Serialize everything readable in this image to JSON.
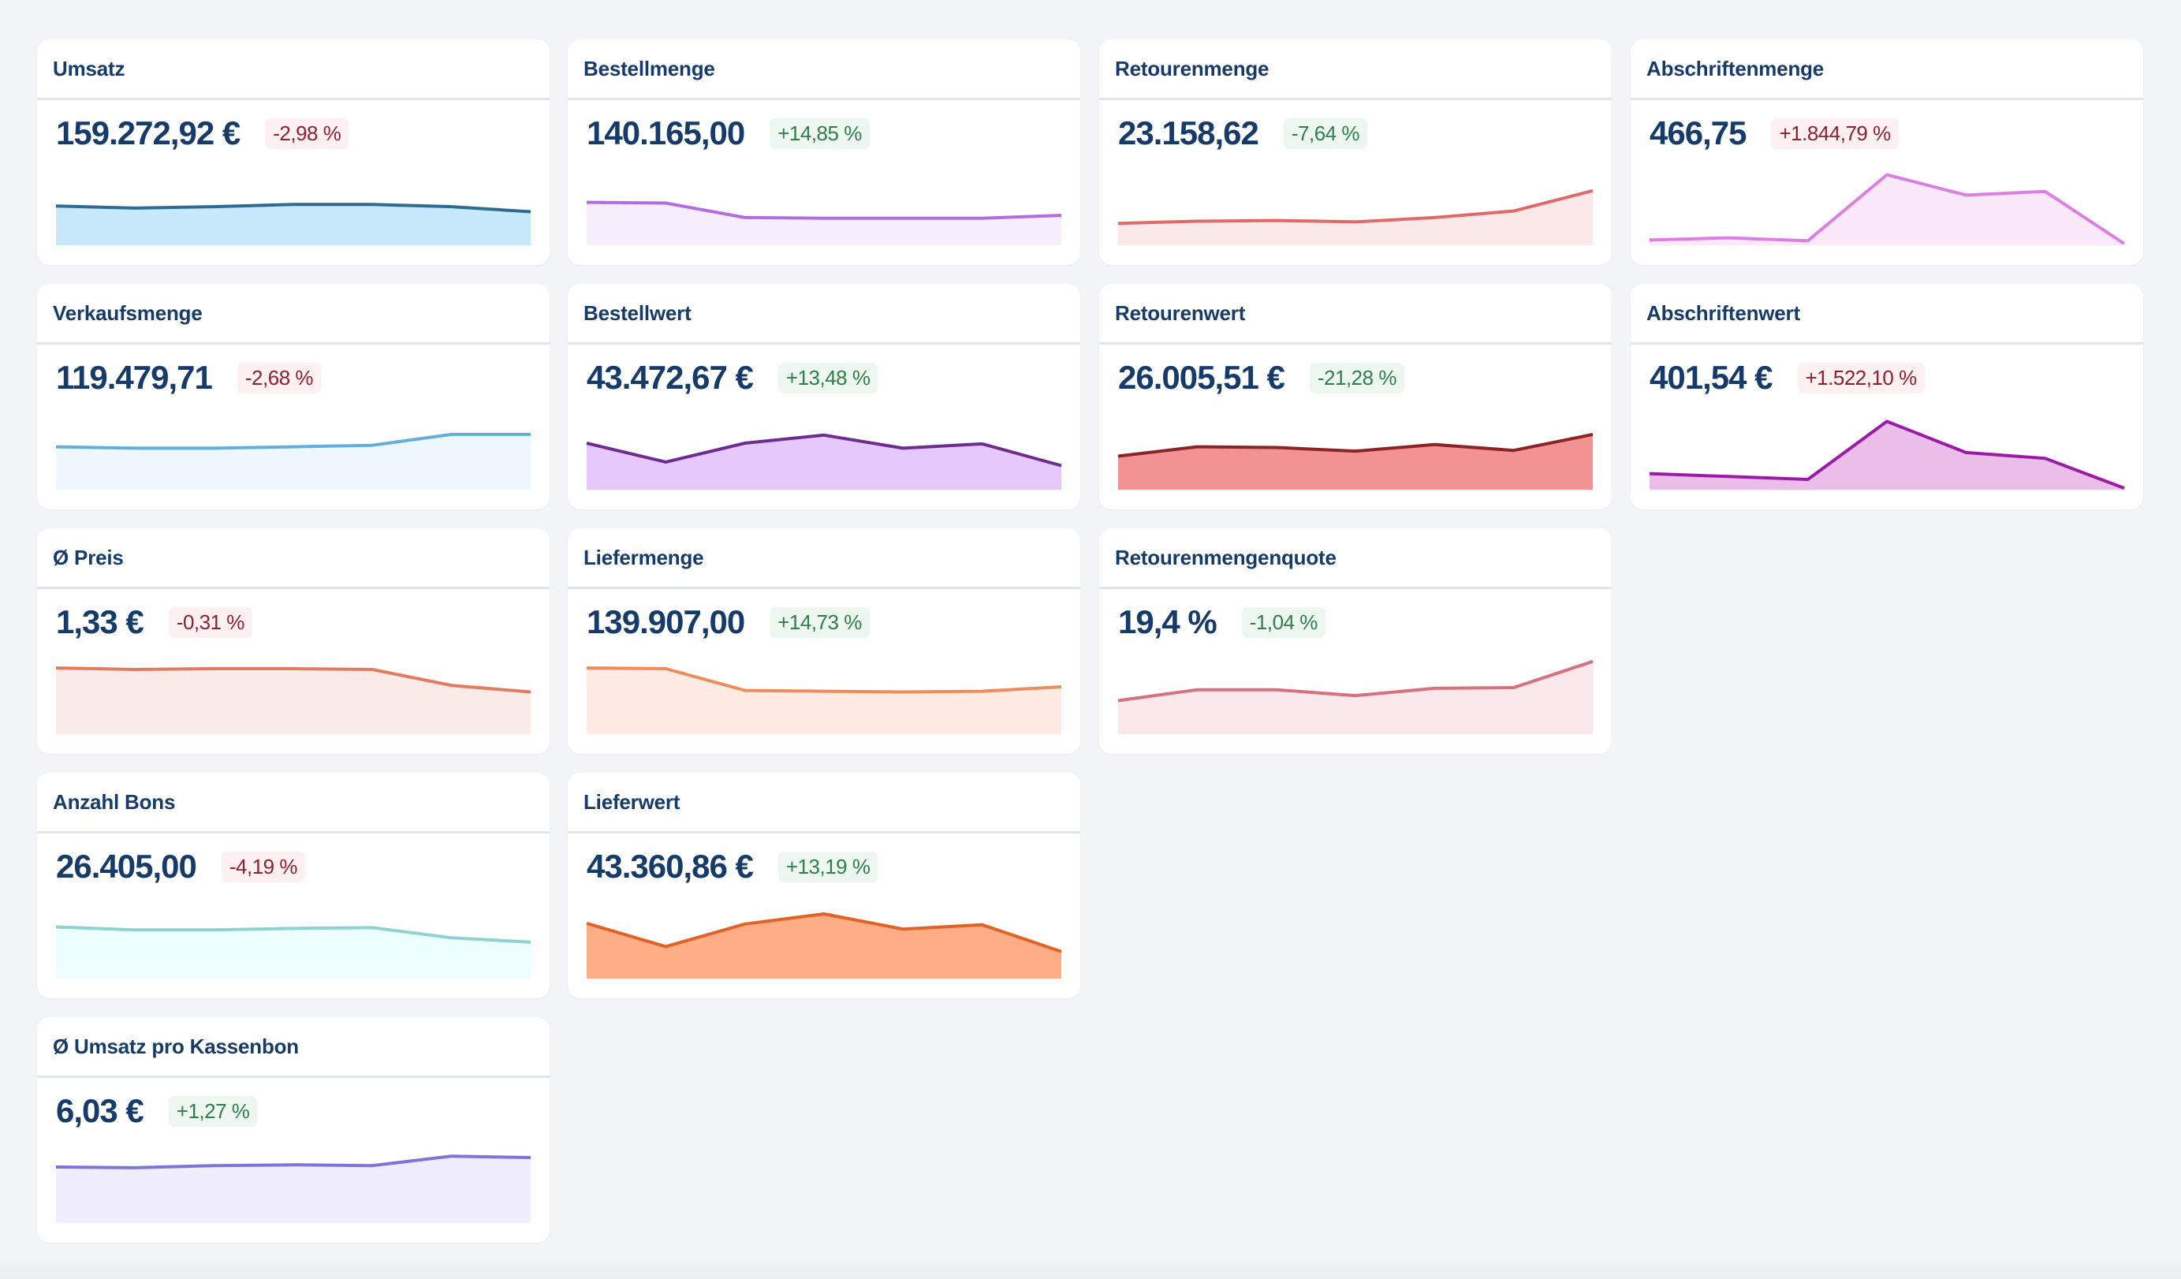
{
  "dashboard": {
    "cards": [
      {
        "id": "umsatz",
        "title": "Umsatz",
        "value": "159.272,92 €",
        "delta": "-2,98 %",
        "trend": "neg",
        "line_color": "#2f6a93",
        "fill_color": "#c8e8fb",
        "col": 0,
        "row": 0,
        "series": [
          0.52,
          0.49,
          0.51,
          0.54,
          0.54,
          0.51,
          0.44
        ]
      },
      {
        "id": "bestellmenge",
        "title": "Bestellmenge",
        "value": "140.165,00",
        "delta": "+14,85 %",
        "trend": "pos",
        "line_color": "#b26ee0",
        "fill_color": "#f6eefd",
        "col": 1,
        "row": 0,
        "series": [
          0.57,
          0.56,
          0.36,
          0.35,
          0.35,
          0.35,
          0.39
        ]
      },
      {
        "id": "retourenmenge",
        "title": "Retourenmenge",
        "value": "23.158,62",
        "delta": "-7,64 %",
        "trend": "pos",
        "line_color": "#e06a6a",
        "fill_color": "#fbe9e9",
        "col": 2,
        "row": 0,
        "series": [
          0.28,
          0.31,
          0.32,
          0.3,
          0.36,
          0.45,
          0.73
        ]
      },
      {
        "id": "abschriftenmenge",
        "title": "Abschriftenmenge",
        "value": "466,75",
        "delta": "+1.844,79 %",
        "trend": "neg",
        "line_color": "#dd7fe2",
        "fill_color": "#fbe9fb",
        "col": 3,
        "row": 0,
        "series": [
          0.05,
          0.08,
          0.04,
          0.95,
          0.67,
          0.72,
          0.0
        ]
      },
      {
        "id": "verkaufsmenge",
        "title": "Verkaufsmenge",
        "value": "119.479,71",
        "delta": "-2,68 %",
        "trend": "neg",
        "line_color": "#64aedc",
        "fill_color": "#eef7fe",
        "col": 0,
        "row": 1,
        "series": [
          0.57,
          0.55,
          0.55,
          0.57,
          0.59,
          0.74,
          0.74
        ]
      },
      {
        "id": "bestellwert",
        "title": "Bestellwert",
        "value": "43.472,67 €",
        "delta": "+13,48 %",
        "trend": "pos",
        "line_color": "#6b2e8f",
        "fill_color": "#e6c8fc",
        "col": 1,
        "row": 1,
        "series": [
          0.62,
          0.36,
          0.62,
          0.73,
          0.55,
          0.61,
          0.31
        ]
      },
      {
        "id": "retourenwert",
        "title": "Retourenwert",
        "value": "26.005,51 €",
        "delta": "-21,28 %",
        "trend": "pos",
        "line_color": "#8c2326",
        "fill_color": "#f39391",
        "col": 2,
        "row": 1,
        "series": [
          0.44,
          0.57,
          0.56,
          0.51,
          0.6,
          0.52,
          0.74
        ]
      },
      {
        "id": "abschriftenwert",
        "title": "Abschriftenwert",
        "value": "401,54 €",
        "delta": "+1.522,10 %",
        "trend": "neg",
        "line_color": "#9b1aa6",
        "fill_color": "#ebbde9",
        "col": 3,
        "row": 1,
        "series": [
          0.2,
          0.16,
          0.12,
          0.92,
          0.49,
          0.41,
          0.0
        ]
      },
      {
        "id": "preis",
        "title": "Ø Preis",
        "value": "1,33 €",
        "delta": "-0,31 %",
        "trend": "neg",
        "line_color": "#e27c60",
        "fill_color": "#fbebe8",
        "col": 0,
        "row": 2,
        "series": [
          0.89,
          0.87,
          0.88,
          0.88,
          0.87,
          0.65,
          0.56
        ]
      },
      {
        "id": "liefermenge",
        "title": "Liefermenge",
        "value": "139.907,00",
        "delta": "+14,73 %",
        "trend": "pos",
        "line_color": "#ee8c5c",
        "fill_color": "#fdebe4",
        "col": 1,
        "row": 2,
        "series": [
          0.89,
          0.88,
          0.58,
          0.57,
          0.56,
          0.57,
          0.63
        ]
      },
      {
        "id": "retourenmengenquote",
        "title": "Retourenmengenquote",
        "value": "19,4 %",
        "delta": "-1,04 %",
        "trend": "pos",
        "line_color": "#d8707f",
        "fill_color": "#fbe8ea",
        "col": 2,
        "row": 2,
        "series": [
          0.44,
          0.59,
          0.59,
          0.51,
          0.61,
          0.62,
          0.98
        ]
      },
      {
        "id": "anzahl-bons",
        "title": "Anzahl Bons",
        "value": "26.405,00",
        "delta": "-4,19 %",
        "trend": "neg",
        "line_color": "#8ed3cf",
        "fill_color": "#ecfefd",
        "col": 0,
        "row": 3,
        "series": [
          0.69,
          0.65,
          0.65,
          0.67,
          0.68,
          0.54,
          0.48
        ]
      },
      {
        "id": "lieferwert",
        "title": "Lieferwert",
        "value": "43.360,86 €",
        "delta": "+13,19 %",
        "trend": "pos",
        "line_color": "#e06327",
        "fill_color": "#feae86",
        "col": 1,
        "row": 3,
        "series": [
          0.74,
          0.42,
          0.73,
          0.87,
          0.66,
          0.72,
          0.35
        ]
      },
      {
        "id": "umsatz-pro-kassenbon",
        "title": "Ø Umsatz pro Kassenbon",
        "value": "6,03 €",
        "delta": "+1,27 %",
        "trend": "pos",
        "line_color": "#7f74d8",
        "fill_color": "#f0eefd",
        "col": 0,
        "row": 4,
        "series": [
          0.75,
          0.74,
          0.77,
          0.78,
          0.77,
          0.9,
          0.88
        ]
      }
    ]
  }
}
